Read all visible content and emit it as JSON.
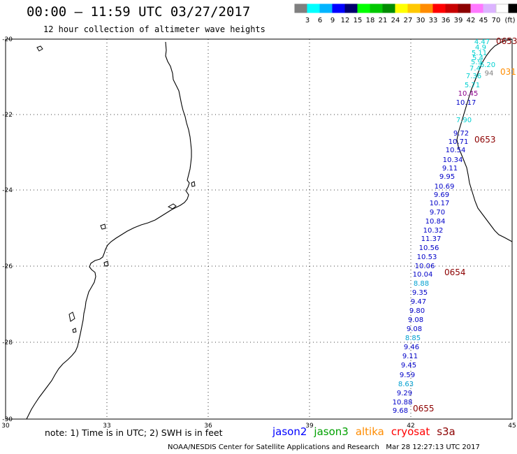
{
  "header": {
    "title": "00:00 — 11:59 UTC 03/27/2017",
    "subtitle": "12 hour collection of altimeter wave heights"
  },
  "colorbar": {
    "colors": [
      "#7f7f7f",
      "#00ffff",
      "#00b4ff",
      "#0000ff",
      "#00006e",
      "#00ff00",
      "#00c800",
      "#008c00",
      "#ffff00",
      "#ffc800",
      "#ff8c00",
      "#ff0000",
      "#c80000",
      "#8c0000",
      "#ff78ff",
      "#dcb4ff",
      "#ffffff",
      "#000000"
    ],
    "labels": [
      "3",
      "6",
      "9",
      "12",
      "15",
      "18",
      "21",
      "24",
      "27",
      "30",
      "33",
      "36",
      "39",
      "42",
      "45",
      "70"
    ],
    "unit": "(ft)"
  },
  "axes": {
    "x_ticks": [
      "30",
      "33",
      "36",
      "39",
      "42",
      "45"
    ],
    "y_ticks": [
      "-20",
      "-22",
      "-24",
      "-26",
      "-28",
      "-30"
    ]
  },
  "tracks": [
    {
      "label": "0653",
      "color": "#8c0000"
    },
    {
      "label": "031",
      "color": "#ff8c00"
    },
    {
      "label": "0653",
      "color": "#8c0000"
    },
    {
      "label": "0654",
      "color": "#8c0000"
    },
    {
      "label": "0655",
      "color": "#8c0000"
    }
  ],
  "wave_heights": [
    {
      "v": "4.47",
      "c": "#00d0d0"
    },
    {
      "v": "4.9",
      "c": "#00d0d0"
    },
    {
      "v": "5.11",
      "c": "#00d0d0"
    },
    {
      "v": "5.4",
      "c": "#00d0d0"
    },
    {
      "v": "5.9",
      "c": "#00d0d0"
    },
    {
      "v": "6.20",
      "c": "#00d0d0"
    },
    {
      "v": "7.4",
      "c": "#00d0d0"
    },
    {
      "v": "7.36",
      "c": "#00d0d0"
    },
    {
      "v": "94",
      "c": "#7f7f7f"
    },
    {
      "v": "5.71",
      "c": "#00d0d0"
    },
    {
      "v": "10.45",
      "c": "#8c008c"
    },
    {
      "v": "10.17",
      "c": "#0000c8"
    },
    {
      "v": "7.90",
      "c": "#00d0d0"
    },
    {
      "v": "9.72",
      "c": "#0000c8"
    },
    {
      "v": "10.71",
      "c": "#0000c8"
    },
    {
      "v": "10.54",
      "c": "#0000c8"
    },
    {
      "v": "10.34",
      "c": "#0000c8"
    },
    {
      "v": "9.11",
      "c": "#0000c8"
    },
    {
      "v": "9.95",
      "c": "#0000c8"
    },
    {
      "v": "10.69",
      "c": "#0000c8"
    },
    {
      "v": "9.69",
      "c": "#0000c8"
    },
    {
      "v": "10.17",
      "c": "#0000c8"
    },
    {
      "v": "9.70",
      "c": "#0000c8"
    },
    {
      "v": "10.84",
      "c": "#0000c8"
    },
    {
      "v": "10.32",
      "c": "#0000c8"
    },
    {
      "v": "11.37",
      "c": "#0000c8"
    },
    {
      "v": "10.56",
      "c": "#0000c8"
    },
    {
      "v": "10.53",
      "c": "#0000c8"
    },
    {
      "v": "10.06",
      "c": "#0000c8"
    },
    {
      "v": "10.04",
      "c": "#0000c8"
    },
    {
      "v": "8.88",
      "c": "#00a0d0"
    },
    {
      "v": "9.35",
      "c": "#0000c8"
    },
    {
      "v": "9.47",
      "c": "#0000c8"
    },
    {
      "v": "9.80",
      "c": "#0000c8"
    },
    {
      "v": "9.08",
      "c": "#0000c8"
    },
    {
      "v": "9.08",
      "c": "#0000c8"
    },
    {
      "v": "8.85",
      "c": "#00a0d0"
    },
    {
      "v": "9.46",
      "c": "#0000c8"
    },
    {
      "v": "9.11",
      "c": "#0000c8"
    },
    {
      "v": "9.45",
      "c": "#0000c8"
    },
    {
      "v": "9.59",
      "c": "#0000c8"
    },
    {
      "v": "8.63",
      "c": "#00a0d0"
    },
    {
      "v": "9.29",
      "c": "#0000c8"
    },
    {
      "v": "10.88",
      "c": "#0000c8"
    },
    {
      "v": "9.68",
      "c": "#0000c8"
    }
  ],
  "footer": {
    "note": "note: 1) Time is in UTC; 2) SWH is in feet",
    "satellites": [
      {
        "name": "jason2",
        "color": "#0000ff"
      },
      {
        "name": "jason3",
        "color": "#00a000"
      },
      {
        "name": "altika",
        "color": "#ff8c00"
      },
      {
        "name": "cryosat",
        "color": "#ff0000"
      },
      {
        "name": "s3a",
        "color": "#8c0000"
      }
    ],
    "credits": "NOAA/NESDIS Center for Satellite Applications and Research   Mar 28 12:27:13 UTC 2017"
  }
}
